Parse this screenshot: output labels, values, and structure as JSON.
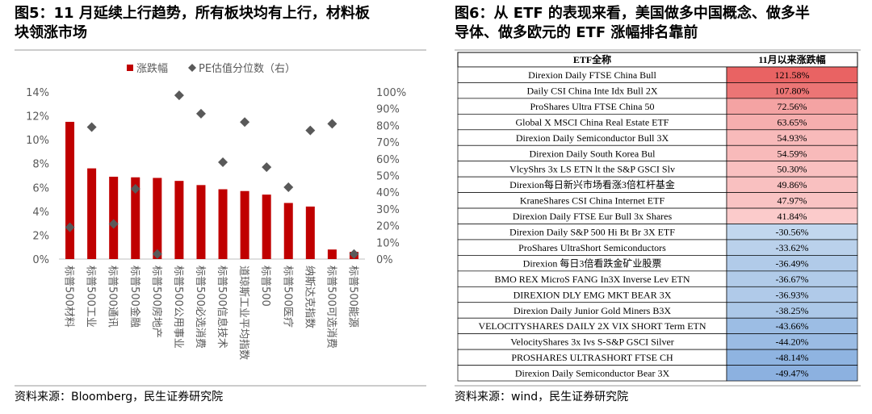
{
  "chart_data": {
    "type": "bar",
    "title": "图5：11 月延续上行趋势，所有板块均有上行，材料板块领涨市场",
    "categories": [
      "标普500材料",
      "标普500工业",
      "标普500通讯",
      "标普500金融",
      "标普500房地产",
      "标普500公用事业",
      "标普500必选消费",
      "标普500信息技术",
      "道琼斯工业平均指数",
      "标普500",
      "标普500医疗",
      "纳斯达克指数",
      "标普500可选消费",
      "标普500能源"
    ],
    "series": [
      {
        "name": "涨跌幅",
        "color": "#c00000",
        "values": [
          11.5,
          7.6,
          6.9,
          6.85,
          6.8,
          6.55,
          6.2,
          5.85,
          5.7,
          5.4,
          4.7,
          4.4,
          0.8,
          0.6
        ]
      },
      {
        "name": "PE估值分位数（右）",
        "color": "#595959",
        "axis": "y2",
        "marker": "diamond",
        "values": [
          19,
          79,
          21,
          42,
          3,
          98,
          87,
          58,
          82,
          55,
          43,
          77,
          81,
          3
        ]
      }
    ],
    "ylim": [
      0,
      14
    ],
    "yticks": [
      {
        "value": 0,
        "label": "0%"
      },
      {
        "value": 2,
        "label": "2%"
      },
      {
        "value": 4,
        "label": "4%"
      },
      {
        "value": 6,
        "label": "6%"
      },
      {
        "value": 8,
        "label": "8%"
      },
      {
        "value": 10,
        "label": "10%"
      },
      {
        "value": 12,
        "label": "12%"
      },
      {
        "value": 14,
        "label": "14%"
      }
    ],
    "y2lim": [
      0,
      100
    ],
    "y2ticks": [
      {
        "value": 0,
        "label": "0%"
      },
      {
        "value": 10,
        "label": "10%"
      },
      {
        "value": 20,
        "label": "20%"
      },
      {
        "value": 30,
        "label": "30%"
      },
      {
        "value": 40,
        "label": "40%"
      },
      {
        "value": 50,
        "label": "50%"
      },
      {
        "value": 60,
        "label": "60%"
      },
      {
        "value": 70,
        "label": "70%"
      },
      {
        "value": 80,
        "label": "80%"
      },
      {
        "value": 90,
        "label": "90%"
      },
      {
        "value": 100,
        "label": "100%"
      }
    ],
    "source": "资料来源：Bloomberg，民生证券研究院"
  },
  "table": {
    "title": "图6：从 ETF 的表现来看，美国做多中国概念、做多半导体、做多欧元的 ETF 涨幅排名靠前",
    "header": [
      "ETF全称",
      "11月以来涨跌幅"
    ],
    "rows": [
      [
        "Direxion Daily FTSE China Bull",
        "121.58%"
      ],
      [
        "Daily CSI China Inte Idx Bull 2X",
        "107.80%"
      ],
      [
        "ProShares Ultra FTSE China 50",
        "72.56%"
      ],
      [
        "Global X MSCI China Real Estate ETF",
        "63.65%"
      ],
      [
        "Direxion Daily Semiconductor Bull 3X",
        "54.93%"
      ],
      [
        "Direxion Daily South Korea Bul",
        "54.59%"
      ],
      [
        "VlcyShrs 3x LS ETN lt the S&P GSCI Slv",
        "50.30%"
      ],
      [
        "Direxion每日新兴市场看涨3倍杠杆基金",
        "49.86%"
      ],
      [
        "KraneShares CSI China Internet ETF",
        "47.97%"
      ],
      [
        "Direxion Daily FTSE Eur Bull 3x Shares",
        "41.84%"
      ],
      [
        "Direxion Daily S&P 500 Hi Bt Br 3X ETF",
        "-30.56%"
      ],
      [
        "ProShares UltraShort Semiconductors",
        "-33.62%"
      ],
      [
        "Direxion 每日3倍看跌金矿业股票",
        "-36.49%"
      ],
      [
        "BMO REX MicroS FANG In3X Inverse Lev ETN",
        "-36.67%"
      ],
      [
        "DIREXION DLY EMG MKT BEAR 3X",
        "-36.93%"
      ],
      [
        "Direxion Daily Junior Gold Miners B3X",
        "-38.25%"
      ],
      [
        "VELOCITYSHARES DAILY 2X VIX SHORT Term ETN",
        "-43.66%"
      ],
      [
        "VelocityShares 3x Ivs S-S&P GSCI Silver",
        "-44.20%"
      ],
      [
        "PROSHARES ULTRASHORT FTSE CH",
        "-48.14%"
      ],
      [
        "Direxion Daily Semiconductor Bear 3X",
        "-49.47%"
      ]
    ],
    "source": "资料来源：wind，民生证券研究院"
  }
}
